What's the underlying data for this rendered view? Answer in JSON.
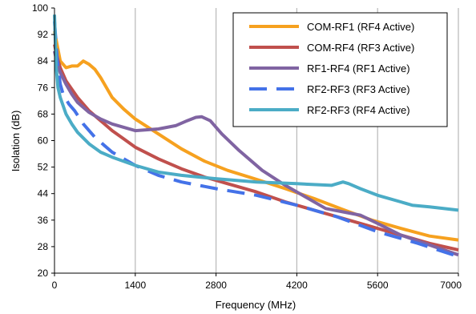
{
  "chart_data": {
    "type": "line",
    "xlabel": "Frequency (MHz)",
    "ylabel": "Isolation (dB)",
    "xlim": [
      0,
      7000
    ],
    "ylim": [
      20,
      100
    ],
    "xticks": [
      0,
      1400,
      2800,
      4200,
      5600,
      7000
    ],
    "yticks": [
      20,
      28,
      36,
      44,
      52,
      60,
      68,
      76,
      84,
      92,
      100
    ],
    "grid": "vertical",
    "legend_position": "top-right",
    "series": [
      {
        "name": "COM-RF1 (RF4 Active)",
        "color": "#F6A11F",
        "dash": "solid",
        "points": [
          [
            0,
            93
          ],
          [
            100,
            84
          ],
          [
            200,
            82
          ],
          [
            300,
            82.5
          ],
          [
            400,
            82.5
          ],
          [
            500,
            84
          ],
          [
            600,
            83
          ],
          [
            700,
            81.5
          ],
          [
            800,
            79
          ],
          [
            1000,
            73
          ],
          [
            1200,
            69.5
          ],
          [
            1400,
            66.5
          ],
          [
            1800,
            62
          ],
          [
            2200,
            57.5
          ],
          [
            2600,
            53.8
          ],
          [
            3000,
            51
          ],
          [
            3500,
            48.3
          ],
          [
            4000,
            45.5
          ],
          [
            4500,
            42.5
          ],
          [
            5000,
            39.2
          ],
          [
            5500,
            36
          ],
          [
            6000,
            33.5
          ],
          [
            6500,
            31.2
          ],
          [
            7000,
            30
          ]
        ]
      },
      {
        "name": "COM-RF4 (RF3 Active)",
        "color": "#C0504D",
        "dash": "solid",
        "points": [
          [
            0,
            89
          ],
          [
            50,
            85
          ],
          [
            100,
            82
          ],
          [
            200,
            78
          ],
          [
            400,
            73
          ],
          [
            600,
            69
          ],
          [
            800,
            66
          ],
          [
            1000,
            63
          ],
          [
            1200,
            60.5
          ],
          [
            1400,
            58
          ],
          [
            1800,
            54.5
          ],
          [
            2200,
            51.5
          ],
          [
            2600,
            49
          ],
          [
            3000,
            47
          ],
          [
            3500,
            44.5
          ],
          [
            4000,
            41.5
          ],
          [
            4500,
            39
          ],
          [
            5000,
            36.5
          ],
          [
            5500,
            34
          ],
          [
            6000,
            31.5
          ],
          [
            6500,
            29
          ],
          [
            7000,
            27
          ]
        ]
      },
      {
        "name": "RF1-RF4 (RF1 Active)",
        "color": "#8064A2",
        "dash": "solid",
        "points": [
          [
            0,
            87
          ],
          [
            50,
            83
          ],
          [
            100,
            80.5
          ],
          [
            200,
            77
          ],
          [
            300,
            74
          ],
          [
            400,
            71.5
          ],
          [
            600,
            68.5
          ],
          [
            800,
            66.5
          ],
          [
            1000,
            65
          ],
          [
            1200,
            64
          ],
          [
            1400,
            63
          ],
          [
            1800,
            63.5
          ],
          [
            2100,
            64.5
          ],
          [
            2300,
            66
          ],
          [
            2450,
            67
          ],
          [
            2550,
            67.2
          ],
          [
            2700,
            66
          ],
          [
            2900,
            62
          ],
          [
            3200,
            57
          ],
          [
            3600,
            51
          ],
          [
            4000,
            46.5
          ],
          [
            4400,
            42.5
          ],
          [
            4700,
            39.5
          ],
          [
            5000,
            38.5
          ],
          [
            5300,
            37.5
          ],
          [
            5600,
            35
          ],
          [
            6000,
            31.5
          ],
          [
            6500,
            28.5
          ],
          [
            7000,
            25.5
          ]
        ]
      },
      {
        "name": "RF2-RF3 (RF3 Active)",
        "color": "#4472E8",
        "dash": "dashed",
        "points": [
          [
            0,
            96
          ],
          [
            50,
            84
          ],
          [
            100,
            77
          ],
          [
            150,
            74
          ],
          [
            250,
            71
          ],
          [
            350,
            69
          ],
          [
            500,
            65
          ],
          [
            700,
            61
          ],
          [
            1000,
            56.5
          ],
          [
            1400,
            52.5
          ],
          [
            1800,
            49.5
          ],
          [
            2200,
            47.5
          ],
          [
            2800,
            45.5
          ],
          [
            3500,
            43.5
          ],
          [
            4200,
            40.5
          ],
          [
            4900,
            37
          ],
          [
            5600,
            32.5
          ],
          [
            6300,
            29
          ],
          [
            7000,
            25
          ]
        ]
      },
      {
        "name": "RF2-RF3 (RF4 Active)",
        "color": "#4BACC6",
        "dash": "solid",
        "points": [
          [
            0,
            98
          ],
          [
            30,
            82
          ],
          [
            60,
            76
          ],
          [
            100,
            73
          ],
          [
            200,
            68
          ],
          [
            300,
            65
          ],
          [
            400,
            62.5
          ],
          [
            600,
            59
          ],
          [
            800,
            56.5
          ],
          [
            1000,
            55
          ],
          [
            1400,
            52.5
          ],
          [
            1800,
            50.5
          ],
          [
            2200,
            49.5
          ],
          [
            2800,
            48.5
          ],
          [
            3500,
            47.5
          ],
          [
            4200,
            47
          ],
          [
            4800,
            46.5
          ],
          [
            4900,
            47
          ],
          [
            5000,
            47.5
          ],
          [
            5100,
            47
          ],
          [
            5300,
            45.5
          ],
          [
            5600,
            43.5
          ],
          [
            6000,
            41.5
          ],
          [
            6200,
            40.5
          ],
          [
            6500,
            40
          ],
          [
            7000,
            39
          ]
        ]
      }
    ]
  }
}
